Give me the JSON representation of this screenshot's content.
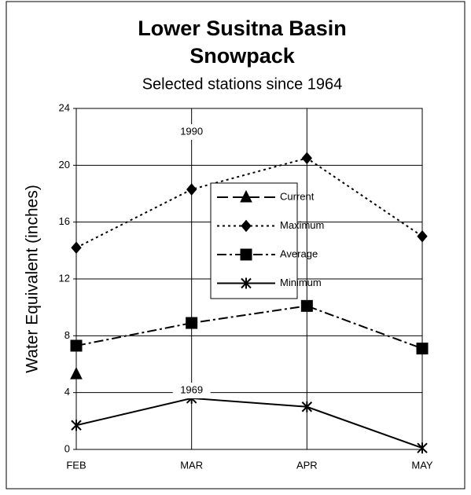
{
  "chart_data": {
    "type": "line",
    "title": "Lower Susitna Basin Snowpack",
    "subtitle": "Selected stations since 1964",
    "y_label": "Water Equivalent (inches)",
    "categories": [
      "FEB",
      "MAR",
      "APR",
      "MAY"
    ],
    "series": [
      {
        "name": "Current",
        "color": "#000000",
        "style": "dashed",
        "marker": "triangle",
        "values": [
          5.3,
          null,
          null,
          null
        ]
      },
      {
        "name": "Maximum",
        "color": "#000000",
        "style": "dotted",
        "marker": "diamond",
        "values": [
          14.2,
          18.3,
          20.5,
          15.0
        ]
      },
      {
        "name": "Average",
        "color": "#000000",
        "style": "dashdot",
        "marker": "square",
        "values": [
          7.3,
          8.9,
          10.1,
          7.1
        ]
      },
      {
        "name": "Minimum",
        "color": "#000000",
        "style": "solid",
        "marker": "star",
        "values": [
          1.7,
          3.6,
          3.0,
          0.1
        ]
      }
    ],
    "annotations": [
      "1990",
      "1969"
    ],
    "ylim": [
      0,
      24
    ],
    "yticks": [
      0,
      4,
      8,
      12,
      16,
      20,
      24
    ],
    "grid": true
  }
}
